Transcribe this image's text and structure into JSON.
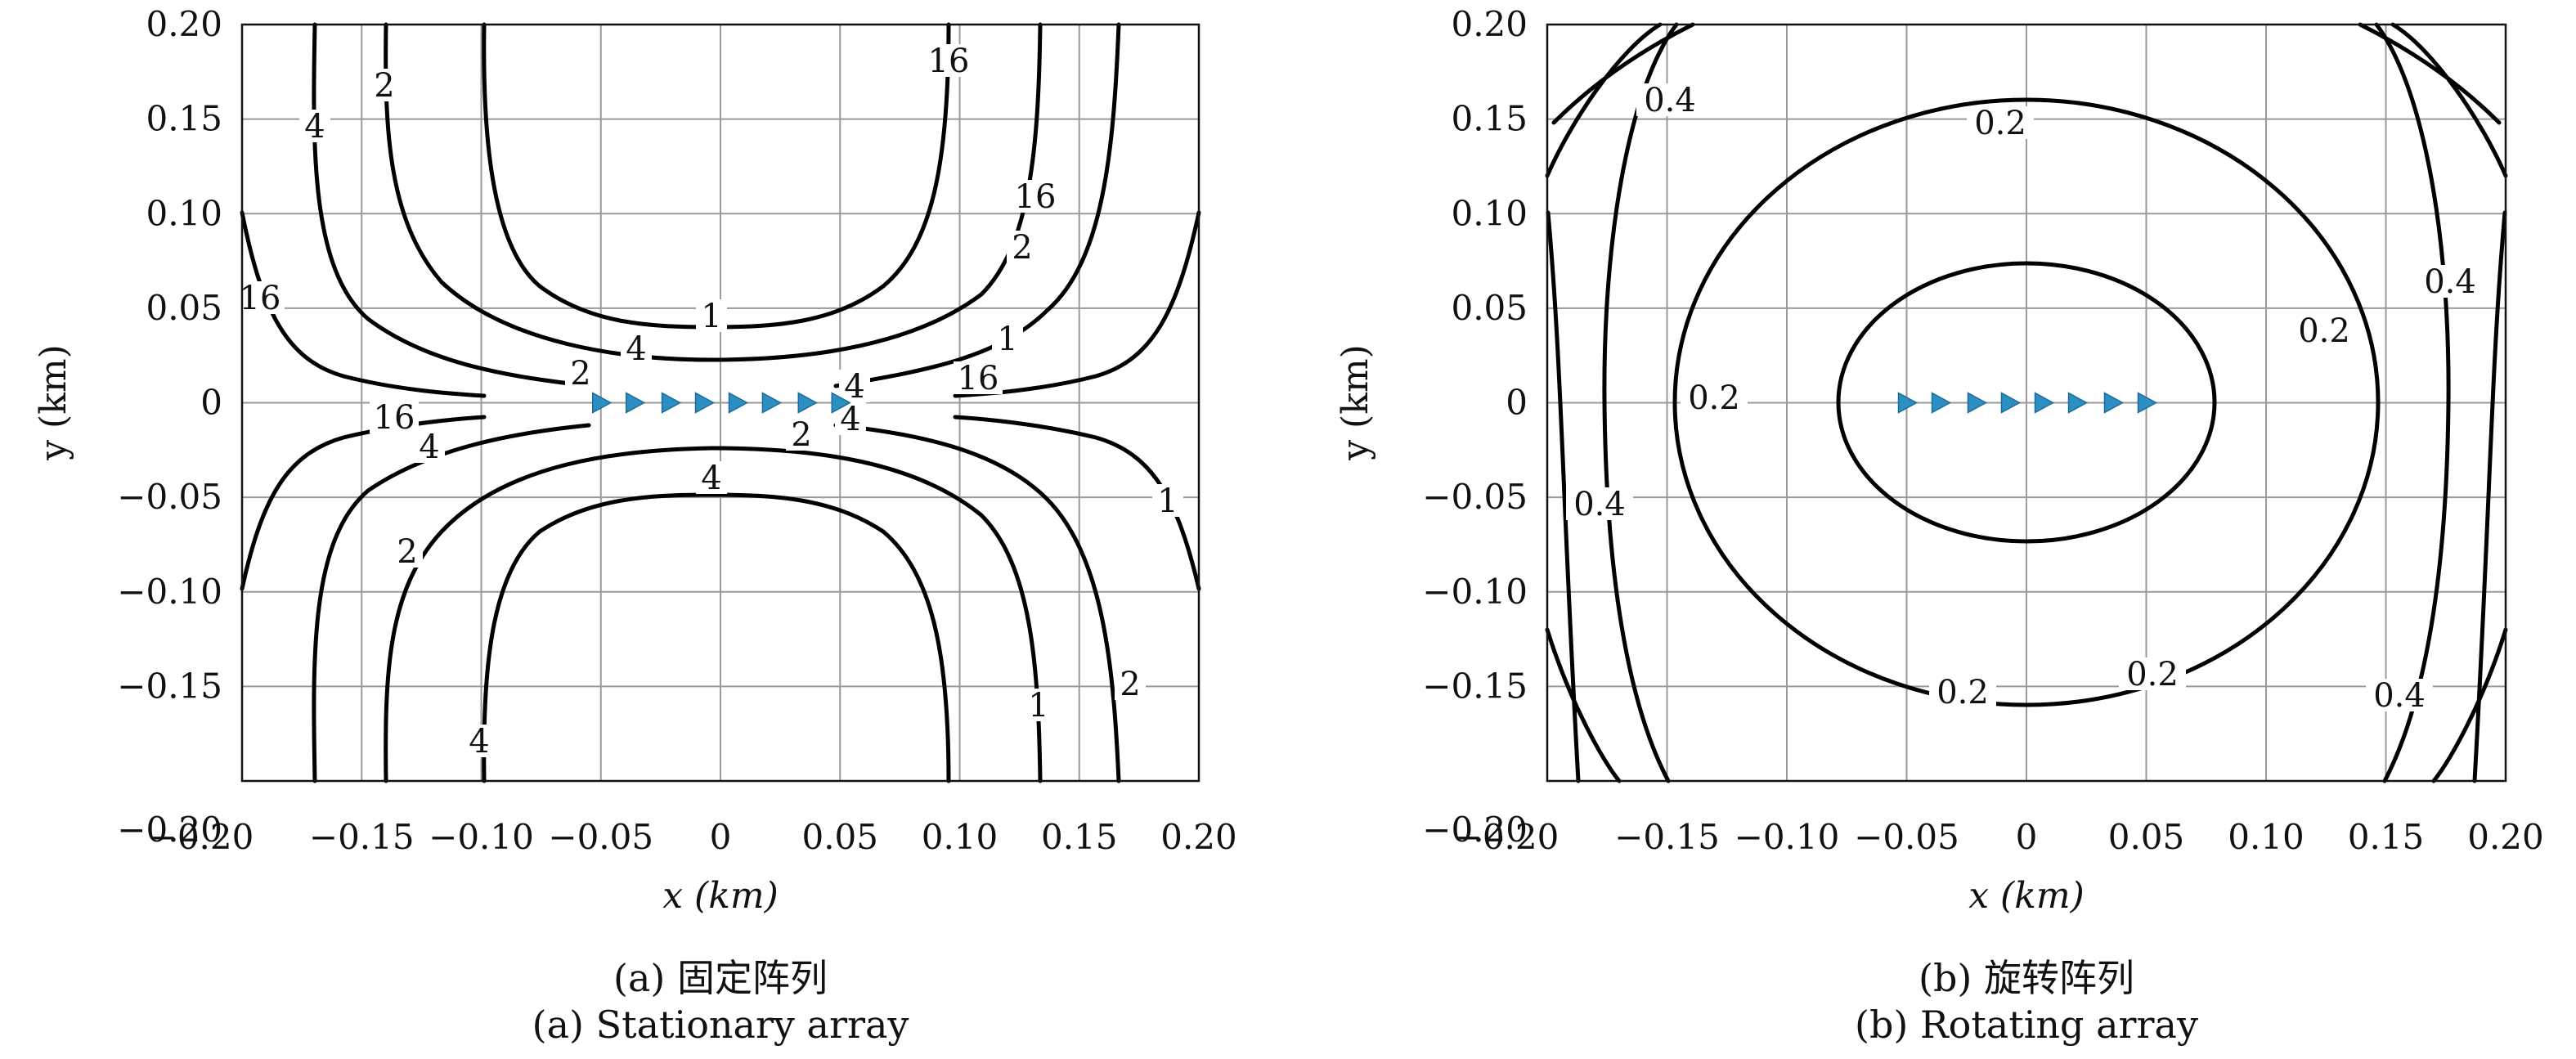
{
  "chart_data": [
    {
      "type": "contour",
      "panel": "a",
      "caption_zh": "(a) 固定阵列",
      "caption_en": "(a) Stationary array",
      "xlabel": "x (km)",
      "ylabel": "y (km)",
      "xlim": [
        -0.2,
        0.2
      ],
      "ylim": [
        -0.2,
        0.2
      ],
      "x_ticks": [
        "−0.20",
        "−0.15",
        "−0.10",
        "−0.05",
        "0",
        "0.05",
        "0.10",
        "0.15",
        "0.20"
      ],
      "y_ticks": [
        "0.20",
        "0.15",
        "0.10",
        "0.05",
        "0",
        "−0.05",
        "−0.10",
        "−0.15",
        "−0.20"
      ],
      "grid": true,
      "contour_levels": [
        1,
        2,
        4,
        16
      ],
      "contour_labels": [
        "1",
        "2",
        "4",
        "16",
        "16",
        "2",
        "4",
        "1",
        "2",
        "4",
        "16",
        "4",
        "16",
        "4",
        "1",
        "2",
        "2",
        "1",
        "4",
        "2",
        "4",
        "16"
      ],
      "sensors": {
        "x": [
          -0.05,
          -0.036,
          -0.021,
          -0.007,
          0.007,
          0.021,
          0.036,
          0.05
        ],
        "y": [
          0,
          0,
          0,
          0,
          0,
          0,
          0,
          0
        ],
        "marker": "triangle-right",
        "color": "#2b8fc4"
      }
    },
    {
      "type": "contour",
      "panel": "b",
      "caption_zh": "(b) 旋转阵列",
      "caption_en": "(b) Rotating array",
      "xlabel": "x (km)",
      "ylabel": "y (km)",
      "xlim": [
        -0.2,
        0.2
      ],
      "ylim": [
        -0.2,
        0.2
      ],
      "x_ticks": [
        "−0.20",
        "−0.15",
        "−0.10",
        "−0.05",
        "0",
        "0.05",
        "0.10",
        "0.15",
        "0.20"
      ],
      "y_ticks": [
        "0.20",
        "0.15",
        "0.10",
        "0.05",
        "0",
        "−0.05",
        "−0.10",
        "−0.15",
        "−0.20"
      ],
      "grid": true,
      "contour_levels": [
        0.1,
        0.2,
        0.4
      ],
      "contour_labels": [
        "0.4",
        "0.2",
        "0.4",
        "0.2",
        "0.2",
        "0.4",
        "0.2",
        "0.2",
        "0.4"
      ],
      "sensors": {
        "x": [
          -0.05,
          -0.036,
          -0.021,
          -0.007,
          0.007,
          0.021,
          0.036,
          0.05
        ],
        "y": [
          0,
          0,
          0,
          0,
          0,
          0,
          0,
          0
        ],
        "marker": "triangle-right",
        "color": "#2b8fc4"
      }
    }
  ]
}
